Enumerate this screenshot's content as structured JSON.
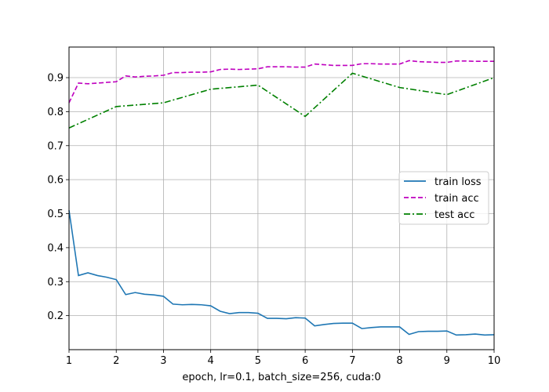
{
  "chart_data": {
    "type": "line",
    "xlabel": "epoch, lr=0.1, batch_size=256, cuda:0",
    "ylabel": "",
    "xlim": [
      1,
      10
    ],
    "ylim": [
      0.1,
      0.99
    ],
    "x_ticks": [
      1,
      2,
      3,
      4,
      5,
      6,
      7,
      8,
      9,
      10
    ],
    "y_ticks": [
      0.2,
      0.3,
      0.4,
      0.5,
      0.6,
      0.7,
      0.8,
      0.9
    ],
    "grid": true,
    "legend_position": "center-right",
    "series": [
      {
        "name": "train loss",
        "color": "#1f77b4",
        "style": "solid",
        "x": [
          1.0,
          1.2,
          1.4,
          1.6,
          1.8,
          2.0,
          2.2,
          2.4,
          2.6,
          2.8,
          3.0,
          3.2,
          3.4,
          3.6,
          3.8,
          4.0,
          4.2,
          4.4,
          4.6,
          4.8,
          5.0,
          5.2,
          5.4,
          5.6,
          5.8,
          6.0,
          6.2,
          6.4,
          6.6,
          6.8,
          7.0,
          7.2,
          7.4,
          7.6,
          7.8,
          8.0,
          8.2,
          8.4,
          8.6,
          8.8,
          9.0,
          9.2,
          9.4,
          9.6,
          9.8,
          10.0
        ],
        "values": [
          0.51,
          0.318,
          0.326,
          0.318,
          0.313,
          0.306,
          0.262,
          0.268,
          0.263,
          0.261,
          0.257,
          0.234,
          0.232,
          0.233,
          0.232,
          0.229,
          0.213,
          0.206,
          0.209,
          0.209,
          0.207,
          0.192,
          0.192,
          0.191,
          0.194,
          0.193,
          0.17,
          0.174,
          0.177,
          0.178,
          0.178,
          0.162,
          0.165,
          0.167,
          0.167,
          0.167,
          0.145,
          0.153,
          0.154,
          0.154,
          0.155,
          0.143,
          0.144,
          0.146,
          0.143,
          0.144
        ]
      },
      {
        "name": "train acc",
        "color": "#bf00bf",
        "style": "dashed",
        "x": [
          1.0,
          1.2,
          1.4,
          1.6,
          1.8,
          2.0,
          2.2,
          2.4,
          2.6,
          2.8,
          3.0,
          3.2,
          3.4,
          3.6,
          3.8,
          4.0,
          4.2,
          4.4,
          4.6,
          4.8,
          5.0,
          5.2,
          5.4,
          5.6,
          5.8,
          6.0,
          6.2,
          6.4,
          6.6,
          6.8,
          7.0,
          7.2,
          7.4,
          7.6,
          7.8,
          8.0,
          8.2,
          8.4,
          8.6,
          8.8,
          9.0,
          9.2,
          9.4,
          9.6,
          9.8,
          10.0
        ],
        "values": [
          0.826,
          0.884,
          0.882,
          0.884,
          0.886,
          0.888,
          0.905,
          0.902,
          0.904,
          0.905,
          0.907,
          0.915,
          0.915,
          0.916,
          0.916,
          0.917,
          0.924,
          0.925,
          0.924,
          0.925,
          0.926,
          0.932,
          0.932,
          0.932,
          0.931,
          0.931,
          0.94,
          0.938,
          0.936,
          0.936,
          0.936,
          0.941,
          0.941,
          0.94,
          0.94,
          0.94,
          0.95,
          0.947,
          0.946,
          0.945,
          0.945,
          0.949,
          0.949,
          0.948,
          0.948,
          0.948
        ]
      },
      {
        "name": "test acc",
        "color": "#008000",
        "style": "dashdot",
        "x": [
          1,
          2,
          3,
          4,
          5,
          6,
          7,
          8,
          9,
          10
        ],
        "values": [
          0.752,
          0.815,
          0.826,
          0.866,
          0.878,
          0.786,
          0.913,
          0.871,
          0.85,
          0.9
        ]
      }
    ]
  }
}
